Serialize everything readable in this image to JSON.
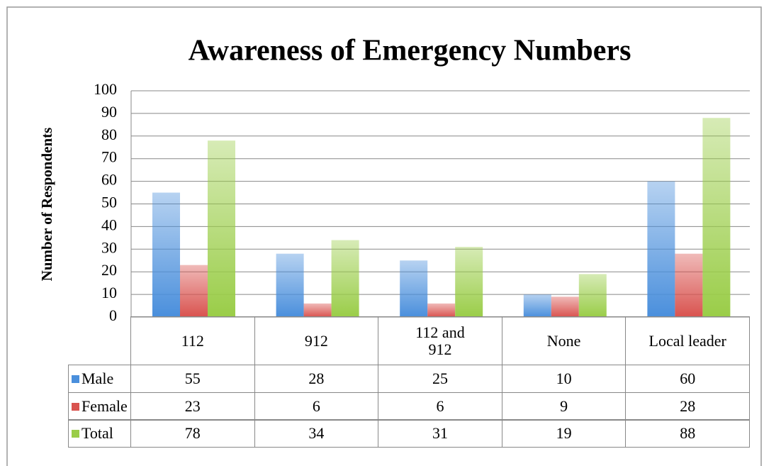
{
  "chart_data": {
    "type": "bar",
    "title": "Awareness of Emergency Numbers",
    "y_label": "Number of Respondents",
    "categories": [
      "112",
      "912",
      "112 and 912",
      "None",
      "Local leader"
    ],
    "series": [
      {
        "name": "Male",
        "color": "#4a8fdc",
        "values": [
          55,
          28,
          25,
          10,
          60
        ]
      },
      {
        "name": "Female",
        "color": "#d9534f",
        "values": [
          23,
          6,
          6,
          9,
          28
        ]
      },
      {
        "name": "Total",
        "color": "#9acd48",
        "values": [
          78,
          34,
          31,
          19,
          88
        ]
      }
    ],
    "ylim": [
      0,
      100
    ],
    "yticks": [
      0,
      10,
      20,
      30,
      40,
      50,
      60,
      70,
      80,
      90,
      100
    ],
    "grid": true
  }
}
